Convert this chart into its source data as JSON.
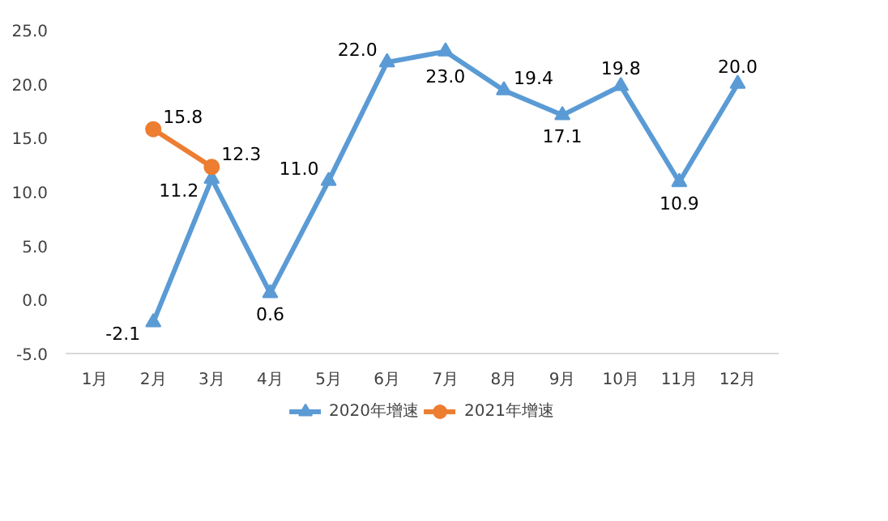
{
  "chart_data": {
    "type": "line",
    "categories": [
      "1月",
      "2月",
      "3月",
      "4月",
      "5月",
      "6月",
      "7月",
      "8月",
      "9月",
      "10月",
      "11月",
      "12月"
    ],
    "series": [
      {
        "name": "2020年增速",
        "color": "#5b9bd5",
        "marker": "triangle",
        "values": [
          null,
          -2.1,
          11.2,
          0.6,
          11.0,
          22.0,
          23.0,
          19.4,
          17.1,
          19.8,
          10.9,
          20.0
        ],
        "value_labels": [
          null,
          "-2.1",
          "11.2",
          "0.6",
          "11.0",
          "22.0",
          "23.0",
          "19.4",
          "17.1",
          "19.8",
          "10.9",
          "20.0"
        ]
      },
      {
        "name": "2021年增速",
        "color": "#ed7d31",
        "marker": "circle",
        "values": [
          null,
          15.8,
          12.3,
          null,
          null,
          null,
          null,
          null,
          null,
          null,
          null,
          null
        ],
        "value_labels": [
          null,
          "15.8",
          "12.3",
          null,
          null,
          null,
          null,
          null,
          null,
          null,
          null,
          null
        ]
      }
    ],
    "ylim": [
      -5,
      25
    ],
    "yticks": [
      {
        "value": -5,
        "label": "-5.0"
      },
      {
        "value": 0,
        "label": "0.0"
      },
      {
        "value": 5,
        "label": "5.0"
      },
      {
        "value": 10,
        "label": "10.0"
      },
      {
        "value": 15,
        "label": "15.0"
      },
      {
        "value": 20,
        "label": "20.0"
      },
      {
        "value": 25,
        "label": "25.0"
      }
    ],
    "legend": "bottom"
  }
}
